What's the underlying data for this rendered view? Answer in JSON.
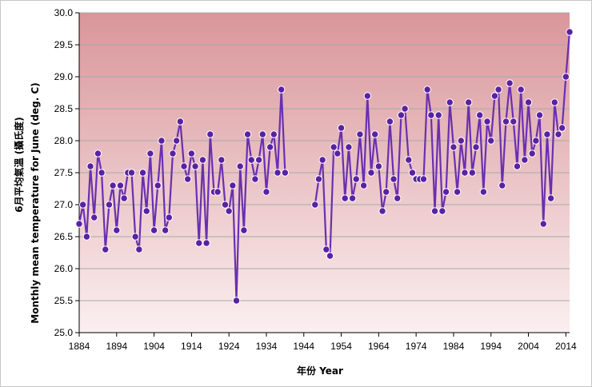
{
  "chart_data": {
    "type": "line",
    "title": "",
    "xlabel": "年份  Year",
    "ylabel": "6月平均氣溫 (攝氏度)  Monthly mean temperature for June (deg. C)",
    "ylabel_zh": "6月平均氣溫 (攝氏度)",
    "ylabel_en": "Monthly mean temperature for June (deg. C)",
    "xlim": [
      1884,
      2015
    ],
    "ylim": [
      25.0,
      30.0
    ],
    "x_ticks": [
      "1884",
      "1894",
      "1904",
      "1914",
      "1924",
      "1934",
      "1944",
      "1954",
      "1964",
      "1974",
      "1984",
      "1994",
      "2004",
      "2014"
    ],
    "y_ticks": [
      "25.0",
      "25.5",
      "26.0",
      "26.5",
      "27.0",
      "27.5",
      "28.0",
      "28.5",
      "29.0",
      "29.5",
      "30.0"
    ],
    "grid": true,
    "legend": false,
    "colors": {
      "line": "#6a2fb0",
      "marker": "#5a21a3",
      "marker_edge": "#ffffff",
      "bg_top": "#d9969a",
      "bg_bottom": "#fbeff0",
      "grid": "#a9a9a9"
    },
    "series": [
      {
        "x": [
          1884,
          1885,
          1886,
          1887,
          1888,
          1889,
          1890,
          1891,
          1892,
          1893,
          1894,
          1895,
          1896,
          1897,
          1898,
          1899,
          1900,
          1901,
          1902,
          1903,
          1904,
          1905,
          1906,
          1907,
          1908,
          1909,
          1910,
          1911,
          1912,
          1913,
          1914,
          1915,
          1916,
          1917,
          1918,
          1919,
          1920,
          1921,
          1922,
          1923,
          1924,
          1925,
          1926,
          1927,
          1928,
          1929,
          1930,
          1931,
          1932,
          1933,
          1934,
          1935,
          1936,
          1937,
          1938,
          1939
        ],
        "values": [
          26.7,
          27.0,
          26.5,
          27.6,
          26.8,
          27.8,
          27.5,
          26.3,
          27.0,
          27.3,
          26.6,
          27.3,
          27.1,
          27.5,
          27.5,
          26.5,
          26.3,
          27.5,
          26.9,
          27.8,
          26.6,
          27.3,
          28.0,
          26.6,
          26.8,
          27.8,
          28.0,
          28.3,
          27.6,
          27.4,
          27.8,
          27.6,
          26.4,
          27.7,
          26.4,
          28.1,
          27.2,
          27.2,
          27.7,
          27.0,
          26.9,
          27.3,
          25.5,
          27.6,
          26.6,
          28.1,
          27.7,
          27.4,
          27.7,
          28.1,
          27.2,
          27.9,
          28.1,
          27.5,
          28.8,
          27.5
        ]
      },
      {
        "x": [
          1947,
          1948,
          1949,
          1950,
          1951,
          1952,
          1953,
          1954,
          1955,
          1956,
          1957,
          1958,
          1959,
          1960,
          1961,
          1962,
          1963,
          1964,
          1965,
          1966,
          1967,
          1968,
          1969,
          1970,
          1971,
          1972,
          1973,
          1974,
          1975,
          1976,
          1977,
          1978,
          1979,
          1980,
          1981,
          1982,
          1983,
          1984,
          1985,
          1986,
          1987,
          1988,
          1989,
          1990,
          1991,
          1992,
          1993,
          1994,
          1995,
          1996,
          1997,
          1998,
          1999,
          2000,
          2001,
          2002,
          2003,
          2004,
          2005,
          2006,
          2007,
          2008,
          2009,
          2010,
          2011,
          2012,
          2013,
          2014,
          2015
        ],
        "values": [
          27.0,
          27.4,
          27.7,
          26.3,
          26.2,
          27.9,
          27.8,
          28.2,
          27.1,
          27.9,
          27.1,
          27.4,
          28.1,
          27.3,
          28.7,
          27.5,
          28.1,
          27.6,
          26.9,
          27.2,
          28.3,
          27.4,
          27.1,
          28.4,
          28.5,
          27.7,
          27.5,
          27.4,
          27.4,
          27.4,
          28.8,
          28.4,
          26.9,
          28.4,
          26.9,
          27.2,
          28.6,
          27.9,
          27.2,
          28.0,
          27.5,
          28.6,
          27.5,
          27.9,
          28.4,
          27.2,
          28.3,
          28.0,
          28.7,
          28.8,
          27.3,
          28.3,
          28.9,
          28.3,
          27.6,
          28.8,
          27.7,
          28.6,
          27.8,
          28.0,
          28.4,
          26.7,
          28.1,
          27.1,
          28.6,
          28.1,
          28.2,
          29.0,
          29.7
        ]
      }
    ]
  }
}
